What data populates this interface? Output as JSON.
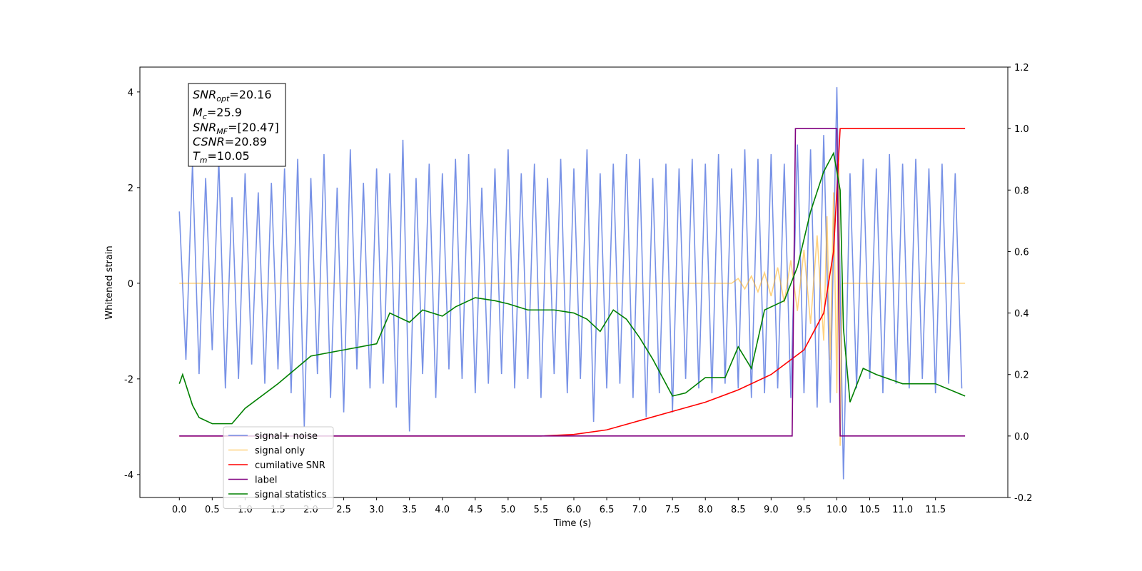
{
  "chart_data": {
    "type": "line",
    "xlabel": "Time (s)",
    "ylabel": "Whitened strain",
    "xlim": [
      -0.6,
      12.6
    ],
    "xticks": [
      {
        "value": 0,
        "label": "0.0"
      },
      0.5,
      {
        "value": 1,
        "label": "1.0"
      },
      1.5,
      {
        "value": 2,
        "label": "2.0"
      },
      2.5,
      {
        "value": 3,
        "label": "3.0"
      },
      3.5,
      {
        "value": 4,
        "label": "4.0"
      },
      4.5,
      {
        "value": 5,
        "label": "5.0"
      },
      5.5,
      {
        "value": 6,
        "label": "6.0"
      },
      6.5,
      {
        "value": 7,
        "label": "7.0"
      },
      7.5,
      {
        "value": 8,
        "label": "8.0"
      },
      8.5,
      {
        "value": 9,
        "label": "9.0"
      },
      9.5,
      {
        "value": 10,
        "label": "10.0"
      },
      10.5,
      {
        "value": 11,
        "label": "11.0"
      },
      11.5
    ],
    "ylim": [
      -4.48,
      4.52
    ],
    "yticks": [
      -4,
      -2,
      0,
      2,
      4
    ],
    "y2lim": [
      -0.2,
      1.2
    ],
    "y2ticks": [
      -0.2,
      {
        "value": 0,
        "label": "0.0"
      },
      0.2,
      0.4,
      0.6,
      0.8,
      {
        "value": 1,
        "label": "1.0"
      },
      1.2
    ],
    "annotation": [
      [
        "SNR",
        "opt",
        "=20.16"
      ],
      [
        "M",
        "c",
        "=25.9"
      ],
      [
        "SNR",
        "MF",
        "=[20.47]"
      ],
      [
        "CSNR",
        "",
        "=20.89"
      ],
      [
        "T",
        "m",
        "=10.05"
      ]
    ],
    "series": [
      {
        "name": "signal+ noise",
        "color": "#5576e0",
        "opacity": 0.8,
        "x": [
          0,
          0.1,
          0.2,
          0.3,
          0.4,
          0.5,
          0.6,
          0.7,
          0.8,
          0.9,
          1,
          1.1,
          1.2,
          1.3,
          1.4,
          1.5,
          1.6,
          1.7,
          1.8,
          1.9,
          2,
          2.1,
          2.2,
          2.3,
          2.4,
          2.5,
          2.6,
          2.7,
          2.8,
          2.9,
          3,
          3.1,
          3.2,
          3.3,
          3.4,
          3.5,
          3.6,
          3.7,
          3.8,
          3.9,
          4,
          4.1,
          4.2,
          4.3,
          4.4,
          4.5,
          4.6,
          4.7,
          4.8,
          4.9,
          5,
          5.1,
          5.2,
          5.3,
          5.4,
          5.5,
          5.6,
          5.7,
          5.8,
          5.9,
          6,
          6.1,
          6.2,
          6.3,
          6.4,
          6.5,
          6.6,
          6.7,
          6.8,
          6.9,
          7,
          7.1,
          7.2,
          7.3,
          7.4,
          7.5,
          7.6,
          7.7,
          7.8,
          7.9,
          8,
          8.1,
          8.2,
          8.3,
          8.4,
          8.5,
          8.6,
          8.7,
          8.8,
          8.9,
          9,
          9.1,
          9.2,
          9.3,
          9.4,
          9.5,
          9.6,
          9.7,
          9.8,
          9.9,
          10,
          10.1,
          10.2,
          10.3,
          10.4,
          10.5,
          10.6,
          10.7,
          10.8,
          10.9,
          11,
          11.1,
          11.2,
          11.3,
          11.4,
          11.5,
          11.6,
          11.7,
          11.8,
          11.9
        ],
        "values": [
          1.5,
          -1.6,
          2.5,
          -1.9,
          2.2,
          -1.4,
          2.6,
          -2.2,
          1.8,
          -2.0,
          2.3,
          -1.7,
          1.9,
          -2.1,
          2.1,
          -1.8,
          2.4,
          -2.3,
          2.6,
          -3.0,
          2.2,
          -1.9,
          2.7,
          -2.4,
          2.0,
          -2.7,
          2.8,
          -1.8,
          2.1,
          -2.2,
          2.4,
          -2.1,
          2.3,
          -2.6,
          3.0,
          -3.1,
          2.2,
          -1.9,
          2.5,
          -2.4,
          2.3,
          -1.8,
          2.6,
          -2.0,
          2.7,
          -2.3,
          2.0,
          -2.1,
          2.4,
          -1.9,
          2.8,
          -2.2,
          2.3,
          -2.0,
          2.5,
          -2.4,
          2.2,
          -1.9,
          2.6,
          -2.3,
          2.4,
          -2.0,
          2.8,
          -2.9,
          2.3,
          -2.2,
          2.5,
          -2.1,
          2.7,
          -2.4,
          2.6,
          -2.8,
          2.2,
          -2.3,
          2.5,
          -2.7,
          2.4,
          -2.0,
          2.6,
          -2.2,
          2.5,
          -2.3,
          2.7,
          -2.1,
          2.4,
          -2.2,
          2.8,
          -2.4,
          2.6,
          -2.3,
          2.7,
          -2.2,
          2.5,
          -2.4,
          2.9,
          -2.3,
          2.8,
          -2.6,
          3.1,
          -2.5,
          4.1,
          -4.1,
          2.3,
          -2.2,
          2.6,
          -2.0,
          2.4,
          -2.3,
          2.7,
          -2.1,
          2.5,
          -2.2,
          2.6,
          -2.0,
          2.4,
          -2.3,
          2.5,
          -2.1,
          2.3,
          -2.2
        ]
      },
      {
        "name": "signal only",
        "color": "orange",
        "opacity": 0.5,
        "x": [
          0,
          8.4,
          8.5,
          8.6,
          8.7,
          8.8,
          8.9,
          9.0,
          9.1,
          9.2,
          9.3,
          9.4,
          9.5,
          9.6,
          9.7,
          9.8,
          9.85,
          9.9,
          9.95,
          10.0,
          10.03,
          10.05,
          10.08,
          11.95
        ],
        "values": [
          0,
          0,
          0.1,
          -0.12,
          0.15,
          -0.18,
          0.22,
          -0.27,
          0.33,
          -0.4,
          0.48,
          -0.58,
          0.7,
          -0.85,
          1.0,
          -1.2,
          1.4,
          -1.6,
          1.9,
          -2.3,
          2.5,
          -3.4,
          0,
          0
        ]
      },
      {
        "name": "cumilative SNR",
        "color": "red",
        "axis": "y2",
        "x": [
          0,
          5.5,
          6.0,
          6.5,
          7.0,
          7.5,
          8.0,
          8.5,
          9.0,
          9.5,
          9.8,
          9.95,
          10.0,
          10.05,
          11.95
        ],
        "values": [
          0,
          0,
          0.005,
          0.02,
          0.05,
          0.08,
          0.11,
          0.15,
          0.2,
          0.28,
          0.4,
          0.6,
          0.8,
          1.0,
          1.0
        ]
      },
      {
        "name": "label",
        "color": "purple",
        "axis": "y2",
        "x": [
          0,
          9.32,
          9.37,
          10.0,
          10.05,
          11.95
        ],
        "values": [
          0,
          0,
          1,
          1,
          0,
          0
        ]
      },
      {
        "name": "signal statistics",
        "color": "green",
        "axis": "y2",
        "x": [
          0,
          0.05,
          0.2,
          0.3,
          0.5,
          0.8,
          1.0,
          1.5,
          2.0,
          2.5,
          3.0,
          3.2,
          3.5,
          3.7,
          4.0,
          4.2,
          4.5,
          4.8,
          5.0,
          5.3,
          5.7,
          6.0,
          6.2,
          6.4,
          6.6,
          6.8,
          7.0,
          7.2,
          7.5,
          7.7,
          8.0,
          8.3,
          8.5,
          8.7,
          8.9,
          9.2,
          9.4,
          9.6,
          9.8,
          9.95,
          10.05,
          10.1,
          10.2,
          10.4,
          10.6,
          11.0,
          11.5,
          11.95
        ],
        "values": [
          0.17,
          0.2,
          0.1,
          0.06,
          0.04,
          0.04,
          0.09,
          0.17,
          0.26,
          0.28,
          0.3,
          0.4,
          0.37,
          0.41,
          0.39,
          0.42,
          0.45,
          0.44,
          0.43,
          0.41,
          0.41,
          0.4,
          0.38,
          0.34,
          0.41,
          0.38,
          0.32,
          0.25,
          0.13,
          0.14,
          0.19,
          0.19,
          0.29,
          0.22,
          0.41,
          0.44,
          0.55,
          0.73,
          0.86,
          0.92,
          0.8,
          0.35,
          0.11,
          0.22,
          0.2,
          0.17,
          0.17,
          0.13
        ]
      }
    ]
  }
}
